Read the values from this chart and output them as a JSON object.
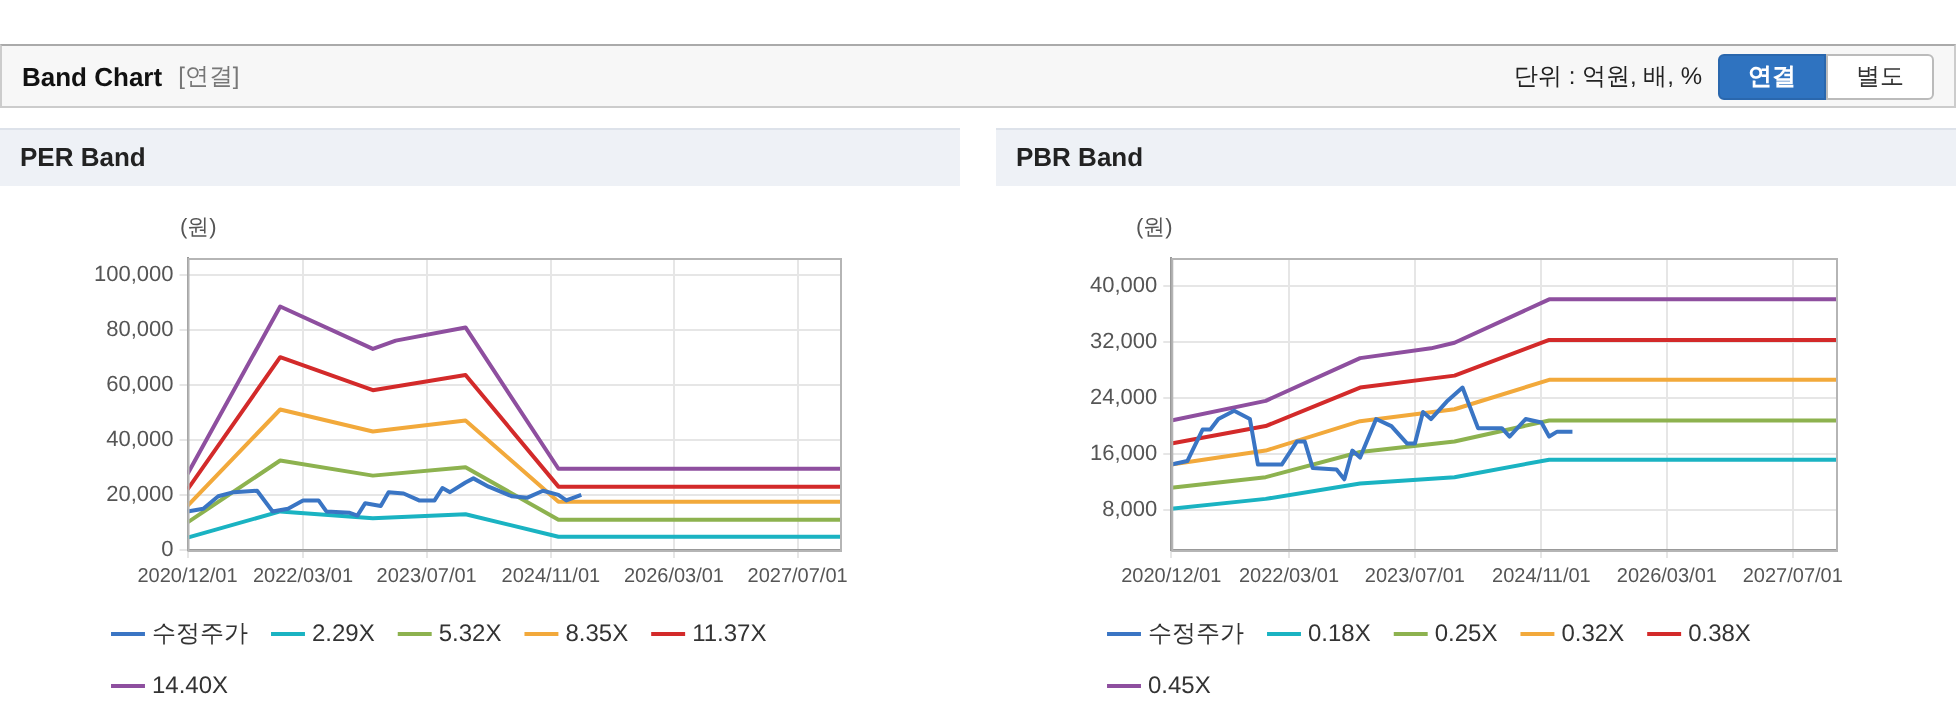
{
  "chart_data": [
    {
      "type": "other",
      "title": "Band Chart",
      "annotations": [
        "[연결]",
        "단위 : 억원, 배, %",
        "연결",
        "별도"
      ]
    },
    {
      "type": "line",
      "title": "PER Band",
      "ylabel": "(원)",
      "grid": true,
      "legend": "bottom",
      "xlim": [
        "2020-12-01",
        "2027-12-15"
      ],
      "xticks": [
        {
          "value": "2020-12-01",
          "label": "2020/12/01"
        },
        {
          "value": "2022-03-01",
          "label": "2022/03/01"
        },
        {
          "value": "2023-07-01",
          "label": "2023/07/01"
        },
        {
          "value": "2024-11-01",
          "label": "2024/11/01"
        },
        {
          "value": "2026-03-01",
          "label": "2026/03/01"
        },
        {
          "value": "2027-07-01",
          "label": "2027/07/01"
        }
      ],
      "ylim": [
        0,
        106000
      ],
      "yticks": [
        {
          "value": 0,
          "label": "0"
        },
        {
          "value": 20000,
          "label": "20,000"
        },
        {
          "value": 40000,
          "label": "40,000"
        },
        {
          "value": 60000,
          "label": "60,000"
        },
        {
          "value": 80000,
          "label": "80,000"
        },
        {
          "value": 100000,
          "label": "100,000"
        }
      ],
      "series": [
        {
          "name": "수정주가",
          "color": "#3a75c4",
          "x": [
            "2020-12",
            "2021-02",
            "2021-04",
            "2021-06",
            "2021-09",
            "2021-11",
            "2022-01",
            "2022-03",
            "2022-05",
            "2022-06",
            "2022-09",
            "2022-10",
            "2022-11",
            "2023-01",
            "2023-02",
            "2023-04",
            "2023-06",
            "2023-08",
            "2023-09",
            "2023-10",
            "2023-12",
            "2024-01",
            "2024-03",
            "2024-06",
            "2024-08",
            "2024-10",
            "2024-12",
            "2025-01",
            "2025-03"
          ],
          "values": [
            14000,
            15000,
            19500,
            21000,
            21500,
            14000,
            15000,
            18000,
            18000,
            14000,
            13500,
            12500,
            17000,
            16000,
            21000,
            20500,
            18000,
            18000,
            22500,
            21000,
            24500,
            26000,
            23000,
            19500,
            19000,
            21500,
            20000,
            18000,
            20000
          ]
        },
        {
          "name": "2.29X",
          "color": "#1ab3c2",
          "x": [
            "2020-12",
            "2021-12",
            "2022-12",
            "2023-12",
            "2024-12",
            "2027-12-15"
          ],
          "values": [
            4500,
            14000,
            11500,
            13000,
            4800,
            4800
          ]
        },
        {
          "name": "5.32X",
          "color": "#8db24f",
          "x": [
            "2020-12",
            "2021-12",
            "2022-12",
            "2023-12",
            "2024-12",
            "2027-12-15"
          ],
          "values": [
            10000,
            32500,
            27000,
            30000,
            11000,
            11000
          ]
        },
        {
          "name": "8.35X",
          "color": "#f2a93b",
          "x": [
            "2020-12",
            "2021-12",
            "2022-12",
            "2023-12",
            "2024-12",
            "2027-12-15"
          ],
          "values": [
            16000,
            51000,
            43000,
            47000,
            17500,
            17500
          ]
        },
        {
          "name": "11.37X",
          "color": "#d32a2a",
          "x": [
            "2020-12",
            "2021-12",
            "2022-12",
            "2023-12",
            "2024-12",
            "2027-12-15"
          ],
          "values": [
            22000,
            70000,
            58000,
            63500,
            23000,
            23000
          ]
        },
        {
          "name": "14.40X",
          "color": "#8e4f9f",
          "x": [
            "2020-12",
            "2021-12",
            "2022-12",
            "2023-03",
            "2023-12",
            "2024-12",
            "2027-12-15"
          ],
          "values": [
            27600,
            88400,
            73000,
            76000,
            80800,
            29500,
            29500
          ]
        }
      ]
    },
    {
      "type": "line",
      "title": "PBR Band",
      "ylabel": "(원)",
      "grid": true,
      "legend": "bottom",
      "xlim": [
        "2020-12-01",
        "2027-12-15"
      ],
      "xticks": [
        {
          "value": "2020-12-01",
          "label": "2020/12/01"
        },
        {
          "value": "2022-03-01",
          "label": "2022/03/01"
        },
        {
          "value": "2023-07-01",
          "label": "2023/07/01"
        },
        {
          "value": "2024-11-01",
          "label": "2024/11/01"
        },
        {
          "value": "2026-03-01",
          "label": "2026/03/01"
        },
        {
          "value": "2027-07-01",
          "label": "2027/07/01"
        }
      ],
      "ylim": [
        2300,
        44000
      ],
      "yticks": [
        {
          "value": 8000,
          "label": "8,000"
        },
        {
          "value": 16000,
          "label": "16,000"
        },
        {
          "value": 24000,
          "label": "24,000"
        },
        {
          "value": 32000,
          "label": "32,000"
        },
        {
          "value": 40000,
          "label": "40,000"
        }
      ],
      "series": [
        {
          "name": "수정주가",
          "color": "#3a75c4",
          "x": [
            "2020-12",
            "2021-02",
            "2021-04",
            "2021-05",
            "2021-06",
            "2021-08",
            "2021-10",
            "2021-11",
            "2022-02",
            "2022-04",
            "2022-05",
            "2022-06",
            "2022-09",
            "2022-10",
            "2022-11",
            "2022-12",
            "2023-02",
            "2023-04",
            "2023-06",
            "2023-07",
            "2023-08",
            "2023-09",
            "2023-11",
            "2024-01",
            "2024-03",
            "2024-06",
            "2024-07",
            "2024-09",
            "2024-11",
            "2024-12",
            "2025-01",
            "2025-03"
          ],
          "values": [
            14500,
            15000,
            19500,
            19500,
            21000,
            22200,
            21000,
            14500,
            14500,
            17800,
            17800,
            14000,
            13800,
            12400,
            16500,
            15500,
            21000,
            20000,
            17500,
            17500,
            22000,
            21000,
            23500,
            25500,
            19700,
            19700,
            18500,
            21000,
            20500,
            18500,
            19200,
            19200
          ]
        },
        {
          "name": "0.18X",
          "color": "#1ab3c2",
          "x": [
            "2020-12",
            "2021-12",
            "2022-12",
            "2023-12",
            "2024-12",
            "2027-12-15"
          ],
          "values": [
            8200,
            9600,
            11800,
            12700,
            15200,
            15200
          ]
        },
        {
          "name": "0.25X",
          "color": "#8db24f",
          "x": [
            "2020-12",
            "2021-12",
            "2022-12",
            "2023-12",
            "2024-12",
            "2027-12-15"
          ],
          "values": [
            11200,
            12700,
            16300,
            17800,
            20800,
            20800
          ]
        },
        {
          "name": "0.32X",
          "color": "#f2a93b",
          "x": [
            "2020-12",
            "2021-12",
            "2022-12",
            "2023-12",
            "2024-12",
            "2027-12-15"
          ],
          "values": [
            14500,
            16500,
            20700,
            22400,
            26600,
            26600
          ]
        },
        {
          "name": "0.38X",
          "color": "#d32a2a",
          "x": [
            "2020-12",
            "2021-12",
            "2022-12",
            "2023-12",
            "2024-12",
            "2027-12-15"
          ],
          "values": [
            17500,
            20000,
            25500,
            27200,
            32300,
            32300
          ]
        },
        {
          "name": "0.45X",
          "color": "#8e4f9f",
          "x": [
            "2020-12",
            "2021-12",
            "2022-12",
            "2023-09",
            "2023-12",
            "2024-12",
            "2027-12-15"
          ],
          "values": [
            20800,
            23600,
            29700,
            31100,
            31900,
            38100,
            38100
          ]
        }
      ]
    }
  ]
}
